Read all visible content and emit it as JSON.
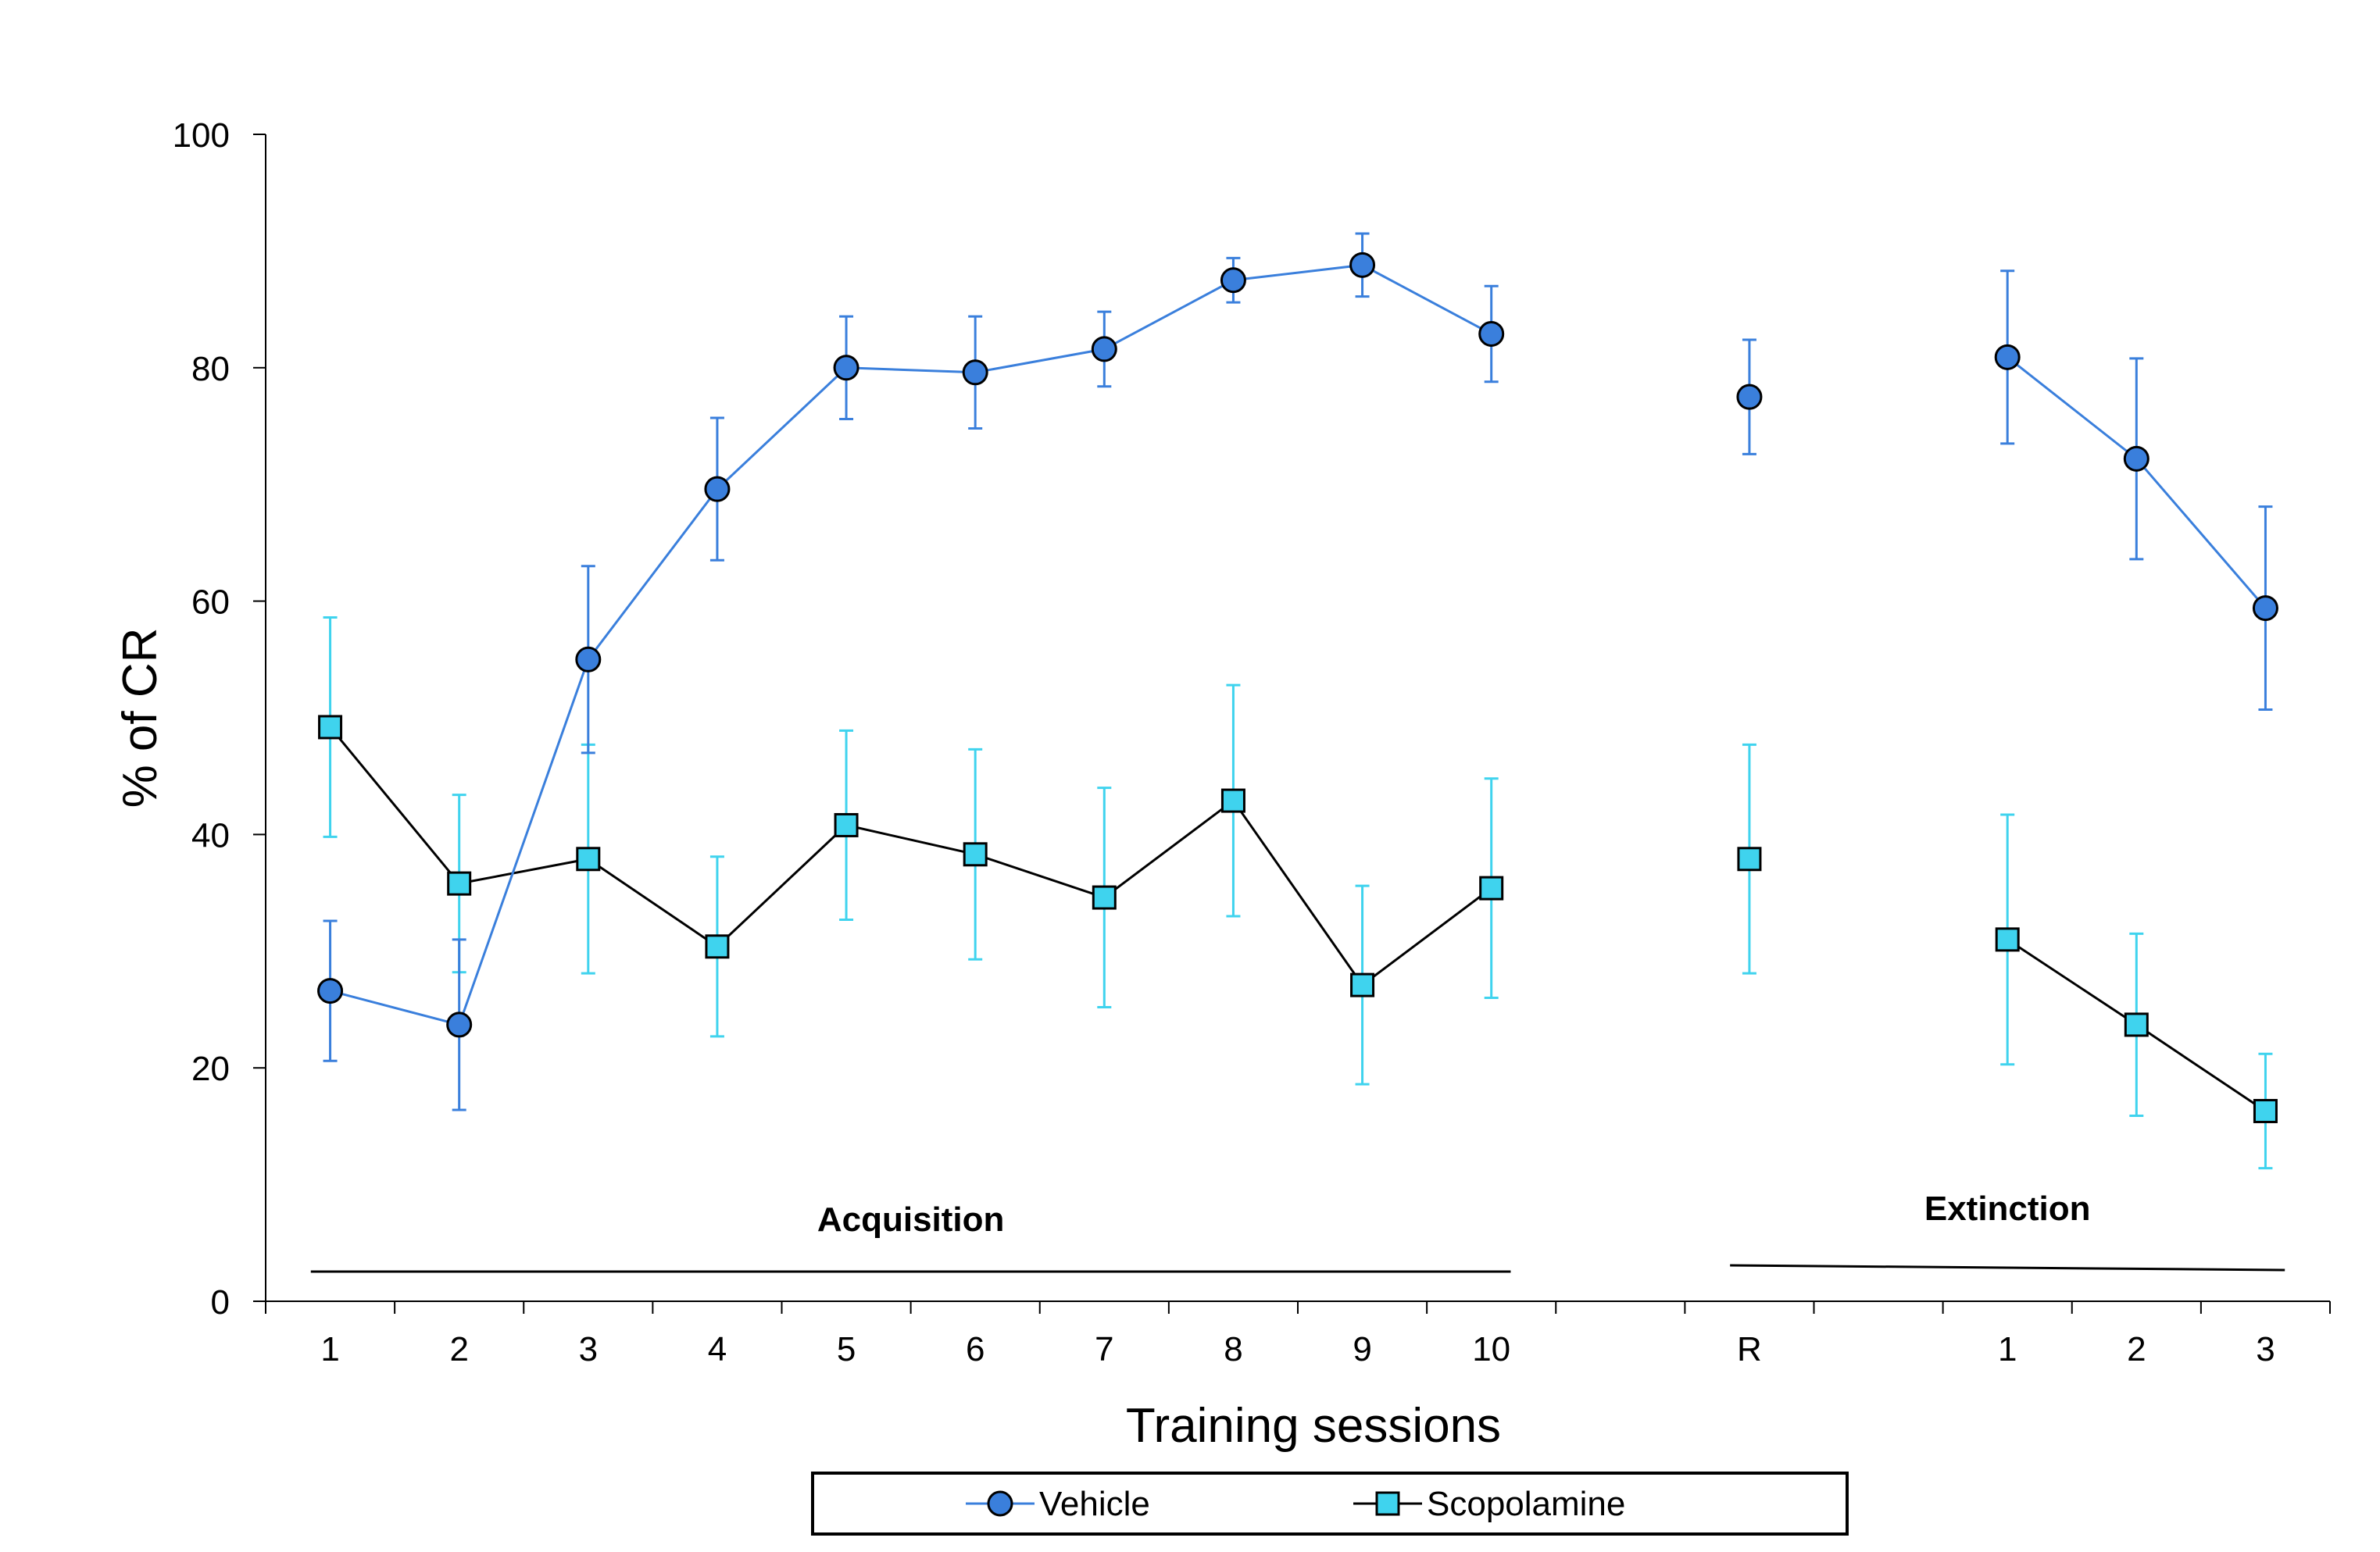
{
  "chart_data": {
    "type": "line",
    "ylabel": "% of CR",
    "xlabel": "Training sessions",
    "ylim": [
      0,
      100
    ],
    "yticks": [
      0,
      20,
      40,
      60,
      80,
      100
    ],
    "categories": [
      "1",
      "2",
      "3",
      "4",
      "5",
      "6",
      "7",
      "8",
      "9",
      "10",
      "",
      "R",
      "",
      "1",
      "2",
      "3"
    ],
    "segments": [
      [
        0,
        9
      ],
      [
        11,
        11
      ],
      [
        13,
        15
      ]
    ],
    "annotations": [
      {
        "text": "Acquisition",
        "from": 0,
        "to": 9
      },
      {
        "text": "Extinction",
        "from": 11,
        "to": 15
      }
    ],
    "legend_position": "bottom",
    "series": [
      {
        "name": "Vehicle",
        "marker": "circle",
        "color": "#3a7fdc",
        "line_color": "#3a7fdc",
        "values": [
          26.6,
          23.7,
          55.0,
          69.6,
          80.0,
          79.6,
          81.6,
          87.5,
          88.8,
          82.9,
          null,
          77.5,
          null,
          80.9,
          72.2,
          59.4
        ],
        "errors": [
          6.0,
          7.3,
          8.0,
          6.1,
          4.4,
          4.8,
          3.2,
          1.9,
          2.7,
          4.1,
          null,
          4.9,
          null,
          7.4,
          8.6,
          8.7
        ]
      },
      {
        "name": "Scopolamine",
        "marker": "square",
        "color": "#3fd3ee",
        "line_color": "#000000",
        "values": [
          49.2,
          35.8,
          37.9,
          30.4,
          40.8,
          38.3,
          34.6,
          42.9,
          27.1,
          35.4,
          null,
          37.9,
          null,
          31.0,
          23.7,
          16.3
        ],
        "errors": [
          9.4,
          7.6,
          9.8,
          7.7,
          8.1,
          9.0,
          9.4,
          9.9,
          8.5,
          9.4,
          null,
          9.8,
          null,
          10.7,
          7.8,
          4.9
        ]
      }
    ]
  }
}
